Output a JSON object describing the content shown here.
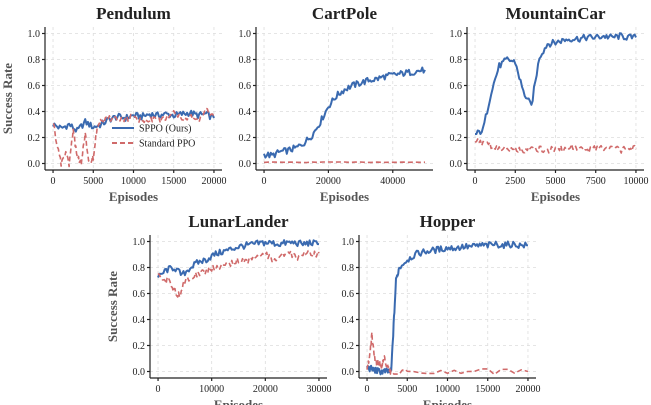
{
  "chart_data": [
    {
      "type": "line",
      "title": "Pendulum",
      "xlabel": "Episodes",
      "ylabel": "Success Rate",
      "xlim": [
        -1000,
        21000
      ],
      "ylim": [
        -0.05,
        1.05
      ],
      "xticks": [
        0,
        5000,
        10000,
        15000,
        20000
      ],
      "xtick_labels": [
        "0",
        "5000",
        "10000",
        "15000",
        "20000"
      ],
      "yticks": [
        0,
        0.2,
        0.4,
        0.6,
        0.8,
        1.0
      ],
      "ytick_labels": [
        "0.0",
        "0.2",
        "0.4",
        "0.6",
        "0.8",
        "1.0"
      ],
      "grid": true,
      "legend": {
        "position": "lower-right"
      },
      "series": [
        {
          "name": "SPPO (Ours)",
          "color": "#3a6ab0",
          "style": "solid",
          "x": [
            0,
            1000,
            2000,
            3000,
            4000,
            5000,
            6000,
            7000,
            8000,
            9000,
            10000,
            11000,
            12000,
            13000,
            14000,
            15000,
            16000,
            17000,
            18000,
            19000,
            20000
          ],
          "y": [
            0.3,
            0.27,
            0.3,
            0.25,
            0.32,
            0.28,
            0.3,
            0.34,
            0.36,
            0.35,
            0.37,
            0.36,
            0.38,
            0.37,
            0.38,
            0.37,
            0.38,
            0.39,
            0.37,
            0.38,
            0.35
          ]
        },
        {
          "name": "Standard PPO",
          "color": "#d06a6a",
          "style": "dashed",
          "x": [
            0,
            500,
            1000,
            1500,
            2000,
            2500,
            3000,
            3500,
            4000,
            4500,
            5000,
            5500,
            6000,
            7000,
            8000,
            9000,
            10000,
            11000,
            12000,
            13000,
            14000,
            15000,
            16000,
            17000,
            18000,
            19000,
            20000
          ],
          "y": [
            0.32,
            0.15,
            0.0,
            0.08,
            0.0,
            0.25,
            0.05,
            0.0,
            0.22,
            0.0,
            0.05,
            0.3,
            0.32,
            0.35,
            0.33,
            0.34,
            0.36,
            0.32,
            0.35,
            0.33,
            0.35,
            0.4,
            0.34,
            0.37,
            0.33,
            0.42,
            0.36
          ]
        }
      ]
    },
    {
      "type": "line",
      "title": "CartPole",
      "xlabel": "Episodes",
      "ylabel": "",
      "xlim": [
        -2500,
        52500
      ],
      "ylim": [
        -0.05,
        1.05
      ],
      "xticks": [
        0,
        20000,
        40000
      ],
      "xtick_labels": [
        "0",
        "20000",
        "40000"
      ],
      "yticks": [
        0,
        0.2,
        0.4,
        0.6,
        0.8,
        1.0
      ],
      "ytick_labels": [
        "0.0",
        "0.2",
        "0.4",
        "0.6",
        "0.8",
        "1.0"
      ],
      "grid": true,
      "series": [
        {
          "name": "SPPO (Ours)",
          "color": "#3a6ab0",
          "style": "solid",
          "x": [
            0,
            2500,
            5000,
            7500,
            10000,
            12500,
            15000,
            17500,
            20000,
            22500,
            25000,
            27500,
            30000,
            32500,
            35000,
            37500,
            40000,
            42500,
            45000,
            47500,
            50000
          ],
          "y": [
            0.07,
            0.06,
            0.09,
            0.1,
            0.12,
            0.16,
            0.22,
            0.32,
            0.44,
            0.52,
            0.57,
            0.6,
            0.62,
            0.64,
            0.65,
            0.67,
            0.68,
            0.69,
            0.7,
            0.71,
            0.72
          ]
        },
        {
          "name": "Standard PPO",
          "color": "#d06a6a",
          "style": "dashed",
          "x": [
            0,
            10000,
            20000,
            30000,
            40000,
            50000
          ],
          "y": [
            0.01,
            0.01,
            0.01,
            0.01,
            0.01,
            0.01
          ]
        }
      ]
    },
    {
      "type": "line",
      "title": "MountainCar",
      "xlabel": "Episodes",
      "ylabel": "",
      "xlim": [
        -500,
        10500
      ],
      "ylim": [
        -0.05,
        1.05
      ],
      "xticks": [
        0,
        2500,
        5000,
        7500,
        10000
      ],
      "xtick_labels": [
        "0",
        "2500",
        "5000",
        "7500",
        "10000"
      ],
      "yticks": [
        0,
        0.2,
        0.4,
        0.6,
        0.8,
        1.0
      ],
      "ytick_labels": [
        "0.0",
        "0.2",
        "0.4",
        "0.6",
        "0.8",
        "1.0"
      ],
      "grid": true,
      "series": [
        {
          "name": "SPPO (Ours)",
          "color": "#3a6ab0",
          "style": "solid",
          "x": [
            0,
            500,
            1000,
            1500,
            2000,
            2500,
            3000,
            3500,
            4000,
            4500,
            5000,
            5500,
            6000,
            6500,
            7000,
            7500,
            8000,
            8500,
            9000,
            9500,
            10000
          ],
          "y": [
            0.22,
            0.26,
            0.55,
            0.75,
            0.8,
            0.78,
            0.55,
            0.44,
            0.82,
            0.92,
            0.93,
            0.95,
            0.96,
            0.96,
            0.97,
            0.97,
            0.98,
            0.97,
            0.98,
            0.97,
            0.97
          ]
        },
        {
          "name": "Standard PPO",
          "color": "#d06a6a",
          "style": "dashed",
          "x": [
            0,
            500,
            1000,
            1500,
            2000,
            2500,
            3000,
            3500,
            4000,
            4500,
            5000,
            5500,
            6000,
            6500,
            7000,
            7500,
            8000,
            8500,
            9000,
            9500,
            10000
          ],
          "y": [
            0.18,
            0.15,
            0.14,
            0.12,
            0.11,
            0.12,
            0.1,
            0.13,
            0.11,
            0.1,
            0.12,
            0.11,
            0.13,
            0.11,
            0.1,
            0.12,
            0.11,
            0.12,
            0.1,
            0.13,
            0.11
          ]
        }
      ]
    },
    {
      "type": "line",
      "title": "LunarLander",
      "xlabel": "Episodes",
      "ylabel": "Success Rate",
      "xlim": [
        -1500,
        31500
      ],
      "ylim": [
        -0.05,
        1.05
      ],
      "xticks": [
        0,
        10000,
        20000,
        30000
      ],
      "xtick_labels": [
        "0",
        "10000",
        "20000",
        "30000"
      ],
      "yticks": [
        0,
        0.2,
        0.4,
        0.6,
        0.8,
        1.0
      ],
      "ytick_labels": [
        "0.0",
        "0.2",
        "0.4",
        "0.6",
        "0.8",
        "1.0"
      ],
      "grid": true,
      "series": [
        {
          "name": "SPPO (Ours)",
          "color": "#3a6ab0",
          "style": "solid",
          "x": [
            0,
            1500,
            3000,
            4500,
            6000,
            7500,
            9000,
            10500,
            12000,
            13500,
            15000,
            16500,
            18000,
            19500,
            21000,
            22500,
            24000,
            25500,
            27000,
            28500,
            30000
          ],
          "y": [
            0.72,
            0.78,
            0.8,
            0.74,
            0.8,
            0.84,
            0.86,
            0.9,
            0.92,
            0.94,
            0.96,
            0.97,
            0.98,
            0.99,
            0.99,
            0.98,
            0.99,
            0.99,
            0.98,
            0.99,
            0.98
          ]
        },
        {
          "name": "Standard PPO",
          "color": "#d06a6a",
          "style": "dashed",
          "x": [
            0,
            1000,
            2000,
            3000,
            4000,
            5000,
            6500,
            8000,
            9500,
            11000,
            12500,
            14000,
            15500,
            17000,
            18500,
            20000,
            21500,
            23000,
            24500,
            26000,
            27500,
            29000,
            30000
          ],
          "y": [
            0.75,
            0.68,
            0.72,
            0.62,
            0.58,
            0.7,
            0.74,
            0.76,
            0.78,
            0.8,
            0.82,
            0.84,
            0.86,
            0.85,
            0.88,
            0.9,
            0.86,
            0.89,
            0.91,
            0.88,
            0.92,
            0.9,
            0.91
          ]
        }
      ]
    },
    {
      "type": "line",
      "title": "Hopper",
      "xlabel": "Episodes",
      "ylabel": "",
      "xlim": [
        -1000,
        21000
      ],
      "ylim": [
        -0.05,
        1.05
      ],
      "xticks": [
        0,
        5000,
        10000,
        15000,
        20000
      ],
      "xtick_labels": [
        "0",
        "5000",
        "10000",
        "15000",
        "20000"
      ],
      "yticks": [
        0,
        0.2,
        0.4,
        0.6,
        0.8,
        1.0
      ],
      "ytick_labels": [
        "0.0",
        "0.2",
        "0.4",
        "0.6",
        "0.8",
        "1.0"
      ],
      "grid": true,
      "series": [
        {
          "name": "SPPO (Ours)",
          "color": "#3a6ab0",
          "style": "solid",
          "x": [
            0,
            500,
            1000,
            1500,
            2000,
            2500,
            3000,
            3300,
            3600,
            4000,
            5000,
            6000,
            7000,
            8000,
            9000,
            10000,
            11000,
            12000,
            13000,
            14000,
            15000,
            16000,
            17000,
            18000,
            19000,
            20000
          ],
          "y": [
            0.03,
            0.02,
            0.01,
            0.0,
            0.0,
            0.0,
            0.0,
            0.35,
            0.7,
            0.8,
            0.86,
            0.9,
            0.92,
            0.93,
            0.94,
            0.95,
            0.95,
            0.96,
            0.96,
            0.97,
            0.97,
            0.98,
            0.97,
            0.98,
            0.97,
            0.97
          ]
        },
        {
          "name": "Standard PPO",
          "color": "#d06a6a",
          "style": "dashed",
          "x": [
            0,
            300,
            600,
            900,
            1200,
            1500,
            1800,
            2100,
            2400,
            2700,
            3000,
            5000,
            10000,
            15000,
            20000
          ],
          "y": [
            0.02,
            0.1,
            0.29,
            0.12,
            0.05,
            0.08,
            0.03,
            0.12,
            0.06,
            0.01,
            0.0,
            0.0,
            0.01,
            0.0,
            0.0
          ]
        }
      ]
    }
  ]
}
